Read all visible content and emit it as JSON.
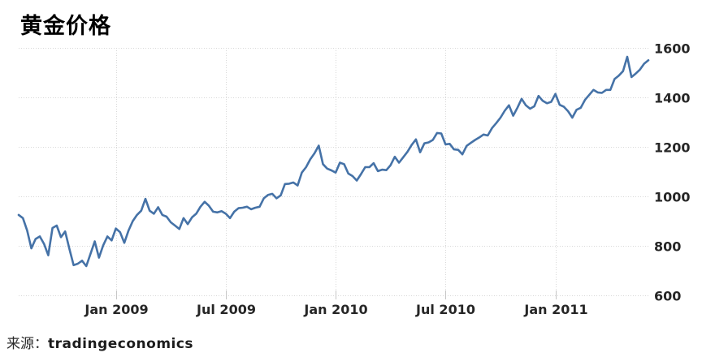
{
  "title": {
    "text": "黄金价格"
  },
  "source": {
    "label": "来源：",
    "name": "tradingeconomics"
  },
  "chart_data": {
    "type": "line",
    "title": "黄金价格",
    "xlabel": "",
    "ylabel": "",
    "legend": "none",
    "grid": true,
    "line_color": "#4572a7",
    "grid_color": "#d8d8d8",
    "tick_color": "#c6c6c6",
    "label_color": "#262626",
    "ylim": [
      600,
      1600
    ],
    "y_ticks": [
      600,
      800,
      1000,
      1200,
      1400,
      1600
    ],
    "x_ticks": [
      {
        "label": "Jan 2009",
        "index": 23
      },
      {
        "label": "Jul 2009",
        "index": 49
      },
      {
        "label": "Jan 2010",
        "index": 75
      },
      {
        "label": "Jul 2010",
        "index": 101
      },
      {
        "label": "Jan 2011",
        "index": 127
      }
    ],
    "values": [
      925,
      912,
      862,
      790,
      828,
      838,
      808,
      762,
      872,
      882,
      835,
      858,
      788,
      722,
      728,
      740,
      718,
      768,
      818,
      752,
      802,
      838,
      822,
      870,
      855,
      812,
      862,
      900,
      925,
      942,
      990,
      942,
      930,
      956,
      925,
      918,
      895,
      882,
      868,
      912,
      888,
      915,
      930,
      958,
      978,
      962,
      938,
      935,
      940,
      930,
      912,
      938,
      952,
      954,
      958,
      948,
      954,
      958,
      992,
      1006,
      1010,
      992,
      1004,
      1050,
      1051,
      1056,
      1044,
      1096,
      1118,
      1150,
      1174,
      1205,
      1130,
      1112,
      1105,
      1096,
      1136,
      1130,
      1092,
      1082,
      1064,
      1090,
      1118,
      1118,
      1134,
      1102,
      1108,
      1106,
      1126,
      1160,
      1136,
      1158,
      1180,
      1208,
      1230,
      1178,
      1214,
      1218,
      1228,
      1256,
      1254,
      1210,
      1212,
      1190,
      1188,
      1170,
      1204,
      1216,
      1228,
      1238,
      1250,
      1246,
      1276,
      1296,
      1318,
      1346,
      1368,
      1326,
      1358,
      1394,
      1368,
      1354,
      1364,
      1406,
      1386,
      1376,
      1382,
      1414,
      1370,
      1362,
      1344,
      1318,
      1350,
      1358,
      1390,
      1410,
      1430,
      1420,
      1418,
      1430,
      1430,
      1474,
      1488,
      1506,
      1564,
      1482,
      1496,
      1512,
      1536,
      1550
    ]
  }
}
